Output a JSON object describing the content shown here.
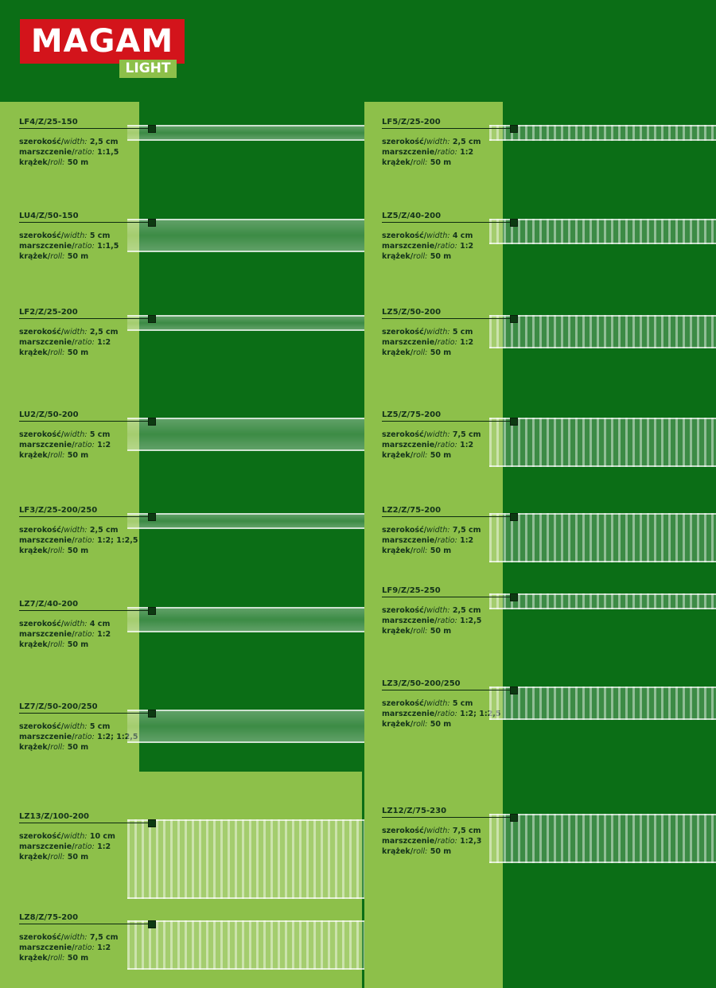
{
  "logo": {
    "brand": "MAGAM",
    "line": "LIGHT"
  },
  "labels": {
    "width_pl": "szerokość/",
    "width_en": "width:",
    "ratio_pl": "marszczenie/",
    "ratio_en": "ratio:",
    "roll_pl": "krążek/",
    "roll_en": "roll:"
  },
  "left": [
    {
      "code": "LF4/Z/25-150",
      "width": "2,5 cm",
      "ratio": "1:1,5",
      "roll": "50 m"
    },
    {
      "code": "LU4/Z/50-150",
      "width": "5 cm",
      "ratio": "1:1,5",
      "roll": "50 m"
    },
    {
      "code": "LF2/Z/25-200",
      "width": "2,5 cm",
      "ratio": "1:2",
      "roll": "50 m"
    },
    {
      "code": "LU2/Z/50-200",
      "width": "5 cm",
      "ratio": "1:2",
      "roll": "50 m"
    },
    {
      "code": "LF3/Z/25-200/250",
      "width": "2,5 cm",
      "ratio": "1:2; 1:2,5",
      "roll": "50 m"
    },
    {
      "code": "LZ7/Z/40-200",
      "width": "4 cm",
      "ratio": "1:2",
      "roll": "50 m"
    },
    {
      "code": "LZ7/Z/50-200/250",
      "width": "5 cm",
      "ratio": "1:2; 1:2,5",
      "roll": "50 m"
    },
    {
      "code": "LZ13/Z/100-200",
      "width": "10 cm",
      "ratio": "1:2",
      "roll": "50 m"
    },
    {
      "code": "LZ8/Z/75-200",
      "width": "7,5 cm",
      "ratio": "1:2",
      "roll": "50 m"
    }
  ],
  "right": [
    {
      "code": "LF5/Z/25-200",
      "width": "2,5 cm",
      "ratio": "1:2",
      "roll": "50 m"
    },
    {
      "code": "LZ5/Z/40-200",
      "width": "4 cm",
      "ratio": "1:2",
      "roll": "50 m"
    },
    {
      "code": "LZ5/Z/50-200",
      "width": "5 cm",
      "ratio": "1:2",
      "roll": "50 m"
    },
    {
      "code": "LZ5/Z/75-200",
      "width": "7,5 cm",
      "ratio": "1:2",
      "roll": "50 m"
    },
    {
      "code": "LZ2/Z/75-200",
      "width": "7,5 cm",
      "ratio": "1:2",
      "roll": "50 m"
    },
    {
      "code": "LF9/Z/25-250",
      "width": "2,5 cm",
      "ratio": "1:2,5",
      "roll": "50 m"
    },
    {
      "code": "LZ3/Z/50-200/250",
      "width": "5 cm",
      "ratio": "1:2; 1:2,5",
      "roll": "50 m"
    },
    {
      "code": "LZ12/Z/75-230",
      "width": "7,5 cm",
      "ratio": "1:2,3",
      "roll": "50 m"
    }
  ]
}
